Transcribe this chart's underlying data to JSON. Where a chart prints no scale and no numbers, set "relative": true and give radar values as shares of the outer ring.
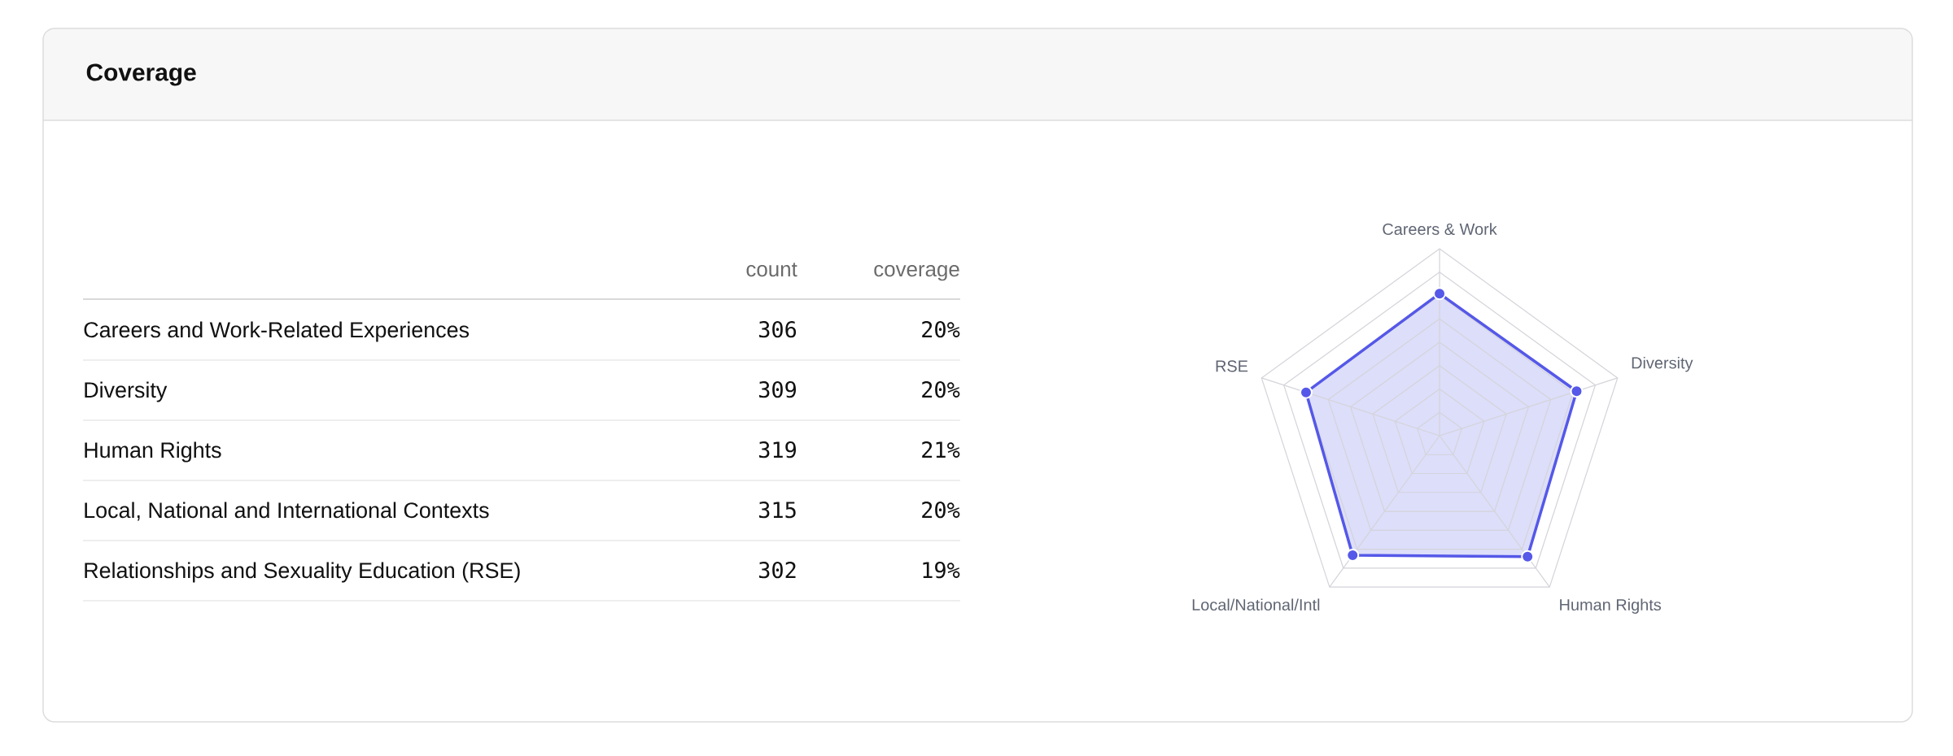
{
  "chart_data": [
    {
      "type": "other",
      "title": "Coverage",
      "data_labels": true,
      "categories": [
        "Careers and Work-Related Experiences",
        "Diversity",
        "Human Rights",
        "Local, National and International Contexts",
        "Relationships and Sexuality Education (RSE)"
      ],
      "series": [
        {
          "name": "count",
          "values": [
            306,
            309,
            319,
            315,
            302
          ]
        },
        {
          "name": "coverage",
          "values": [
            20,
            20,
            21,
            20,
            19
          ],
          "value_labels": [
            "20%",
            "20%",
            "21%",
            "20%",
            "19%"
          ]
        }
      ]
    },
    {
      "type": "radar",
      "categories": [
        "Careers & Work",
        "Diversity",
        "Human Rights",
        "Local/National/Intl",
        "RSE"
      ],
      "relative": true,
      "grid": true,
      "marker": "circle",
      "series": [
        {
          "color": "#5558e8",
          "values": [
            0.76,
            0.77,
            0.8,
            0.79,
            0.75
          ]
        }
      ]
    }
  ]
}
